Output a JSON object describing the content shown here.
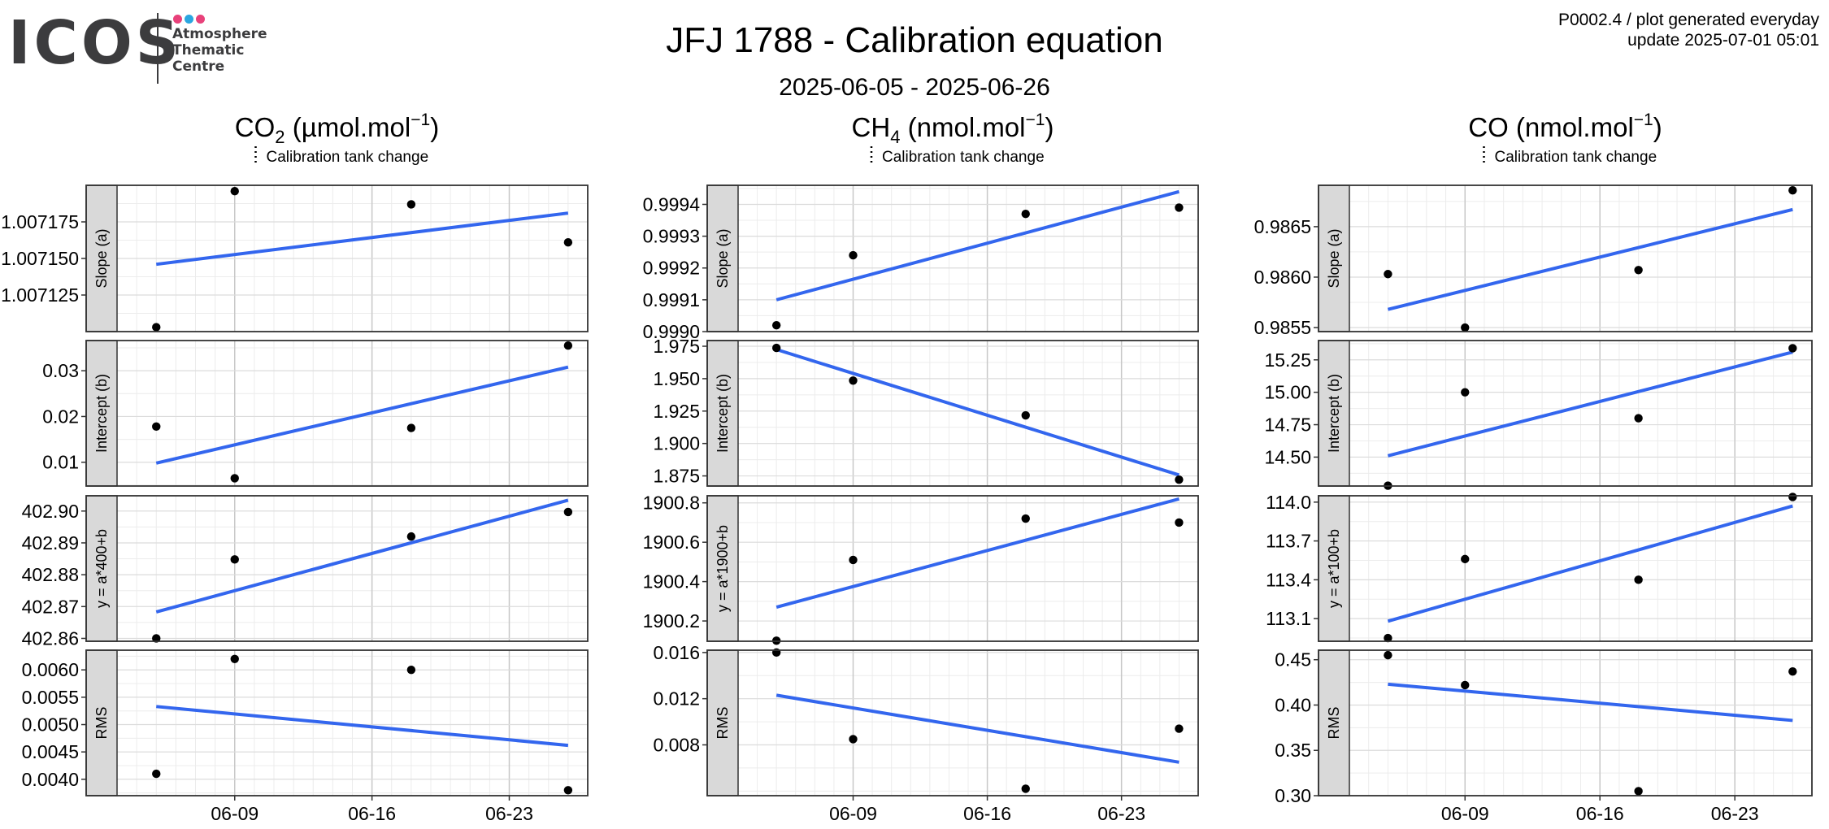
{
  "header": {
    "logo_word": "ICOS",
    "logo_lines": [
      "Atmosphere",
      "Thematic",
      "Centre"
    ],
    "logo_dot_colors": [
      "#e8417a",
      "#2aa6e0",
      "#e8417a"
    ],
    "title": "JFJ 1788 - Calibration equation",
    "subtitle": "2025-06-05 - 2025-06-26",
    "meta_line1": "P0002.4 / plot generated everyday",
    "meta_line2": "update  2025-07-01 05:01"
  },
  "legend": {
    "label": "Calibration tank change"
  },
  "style": {
    "fit_line_color": "#3366ee",
    "point_color": "#000000",
    "strip_fill": "#d9d9d9"
  },
  "chart_data": {
    "type": "scatter",
    "x_ticks": [
      {
        "date": "2025-06-09",
        "label": "06-09"
      },
      {
        "date": "2025-06-16",
        "label": "06-16"
      },
      {
        "date": "2025-06-23",
        "label": "06-23"
      }
    ],
    "xlim": [
      "2025-06-03",
      "2025-06-27"
    ],
    "x_dates": [
      "2025-06-05",
      "2025-06-09",
      "2025-06-18",
      "2025-06-26"
    ],
    "row_labels": [
      "Slope (a)",
      "Intercept (b)",
      "y = a*{ref}+b",
      "RMS"
    ],
    "columns": [
      {
        "gas": "CO",
        "sub": "2",
        "unit": " (µmol.mol",
        "unit_sup": "−1",
        "unit_close": ")",
        "ref": "400",
        "panels": [
          {
            "label": "Slope (a)",
            "ylim": [
              1.0071,
              1.0072
            ],
            "yticks": [
              {
                "v": 1.007125,
                "t": "1.007125"
              },
              {
                "v": 1.00715,
                "t": "1.007150"
              },
              {
                "v": 1.007175,
                "t": "1.007175"
              }
            ],
            "values": [
              1.007103,
              1.007196,
              1.007187,
              1.007161
            ],
            "fit": [
              1.007146,
              1.007181
            ]
          },
          {
            "label": "Intercept (b)",
            "ylim": [
              0.0048,
              0.0366
            ],
            "yticks": [
              {
                "v": 0.01,
                "t": "0.01"
              },
              {
                "v": 0.02,
                "t": "0.02"
              },
              {
                "v": 0.03,
                "t": "0.03"
              }
            ],
            "values": [
              0.0178,
              0.0065,
              0.0175,
              0.0355
            ],
            "fit": [
              0.0098,
              0.0308
            ]
          },
          {
            "label": "y = a*400+b",
            "ylim": [
              402.8591,
              402.9048
            ],
            "yticks": [
              {
                "v": 402.86,
                "t": "402.86"
              },
              {
                "v": 402.87,
                "t": "402.87"
              },
              {
                "v": 402.88,
                "t": "402.88"
              },
              {
                "v": 402.89,
                "t": "402.89"
              },
              {
                "v": 402.9,
                "t": "402.90"
              }
            ],
            "values": [
              402.86,
              402.8848,
              402.892,
              402.8997
            ],
            "fit": [
              402.8683,
              402.9034
            ]
          },
          {
            "label": "RMS",
            "ylim": [
              0.0037,
              0.00636
            ],
            "yticks": [
              {
                "v": 0.004,
                "t": "0.0040"
              },
              {
                "v": 0.0045,
                "t": "0.0045"
              },
              {
                "v": 0.005,
                "t": "0.0050"
              },
              {
                "v": 0.0055,
                "t": "0.0055"
              },
              {
                "v": 0.006,
                "t": "0.0060"
              }
            ],
            "values": [
              0.0041,
              0.0062,
              0.006,
              0.0038
            ],
            "fit": [
              0.00533,
              0.00462
            ]
          }
        ]
      },
      {
        "gas": "CH",
        "sub": "4",
        "unit": " (nmol.mol",
        "unit_sup": "−1",
        "unit_close": ")",
        "ref": "1900",
        "panels": [
          {
            "label": "Slope (a)",
            "ylim": [
              0.999,
              0.99946
            ],
            "yticks": [
              {
                "v": 0.999,
                "t": "0.9990"
              },
              {
                "v": 0.9991,
                "t": "0.9991"
              },
              {
                "v": 0.9992,
                "t": "0.9992"
              },
              {
                "v": 0.9993,
                "t": "0.9993"
              },
              {
                "v": 0.9994,
                "t": "0.9994"
              }
            ],
            "values": [
              0.99902,
              0.99924,
              0.99937,
              0.99939
            ],
            "fit": [
              0.9991,
              0.99944
            ]
          },
          {
            "label": "Intercept (b)",
            "ylim": [
              1.8672,
              1.9794
            ],
            "yticks": [
              {
                "v": 1.875,
                "t": "1.875"
              },
              {
                "v": 1.9,
                "t": "1.900"
              },
              {
                "v": 1.925,
                "t": "1.925"
              },
              {
                "v": 1.95,
                "t": "1.950"
              },
              {
                "v": 1.975,
                "t": "1.975"
              }
            ],
            "values": [
              1.9737,
              1.9485,
              1.9217,
              1.8721
            ],
            "fit": [
              1.9725,
              1.8757
            ]
          },
          {
            "label": "y = a*1900+b",
            "ylim": [
              1900.097,
              1900.836
            ],
            "yticks": [
              {
                "v": 1900.2,
                "t": "1900.2"
              },
              {
                "v": 1900.4,
                "t": "1900.4"
              },
              {
                "v": 1900.6,
                "t": "1900.6"
              },
              {
                "v": 1900.8,
                "t": "1900.8"
              }
            ],
            "values": [
              1900.1,
              1900.51,
              1900.72,
              1900.7
            ],
            "fit": [
              1900.27,
              1900.82
            ]
          },
          {
            "label": "RMS",
            "ylim": [
              0.0036,
              0.0162
            ],
            "yticks": [
              {
                "v": 0.008,
                "t": "0.008"
              },
              {
                "v": 0.012,
                "t": "0.012"
              },
              {
                "v": 0.016,
                "t": "0.016"
              }
            ],
            "values": [
              0.016,
              0.0085,
              0.0042,
              0.0094
            ],
            "fit": [
              0.0123,
              0.0065
            ]
          }
        ]
      },
      {
        "gas": "CO",
        "sub": "",
        "unit": " (nmol.mol",
        "unit_sup": "−1",
        "unit_close": ")",
        "ref": "100",
        "panels": [
          {
            "label": "Slope (a)",
            "ylim": [
              0.98546,
              0.98691
            ],
            "yticks": [
              {
                "v": 0.9855,
                "t": "0.9855"
              },
              {
                "v": 0.986,
                "t": "0.9860"
              },
              {
                "v": 0.9865,
                "t": "0.9865"
              }
            ],
            "values": [
              0.98603,
              0.9855,
              0.98607,
              0.98686
            ],
            "fit": [
              0.98568,
              0.98667
            ]
          },
          {
            "label": "Intercept (b)",
            "ylim": [
              14.277,
              15.399
            ],
            "yticks": [
              {
                "v": 14.5,
                "t": "14.50"
              },
              {
                "v": 14.75,
                "t": "14.75"
              },
              {
                "v": 15,
                "t": "15.00"
              },
              {
                "v": 15.25,
                "t": "15.25"
              }
            ],
            "values": [
              14.28,
              15.0,
              14.8,
              15.34
            ],
            "fit": [
              14.51,
              15.31
            ]
          },
          {
            "label": "y = a*100+b",
            "ylim": [
              112.925,
              114.049
            ],
            "yticks": [
              {
                "v": 113.1,
                "t": "113.1"
              },
              {
                "v": 113.4,
                "t": "113.4"
              },
              {
                "v": 113.7,
                "t": "113.7"
              },
              {
                "v": 114,
                "t": "114.0"
              }
            ],
            "values": [
              112.95,
              113.56,
              113.4,
              114.04
            ],
            "fit": [
              113.08,
              113.97
            ]
          },
          {
            "label": "RMS",
            "ylim": [
              0.3,
              0.4605
            ],
            "yticks": [
              {
                "v": 0.3,
                "t": "0.30"
              },
              {
                "v": 0.35,
                "t": "0.35"
              },
              {
                "v": 0.4,
                "t": "0.40"
              },
              {
                "v": 0.45,
                "t": "0.45"
              }
            ],
            "values": [
              0.455,
              0.422,
              0.305,
              0.437
            ],
            "fit": [
              0.423,
              0.383
            ]
          }
        ]
      }
    ]
  }
}
